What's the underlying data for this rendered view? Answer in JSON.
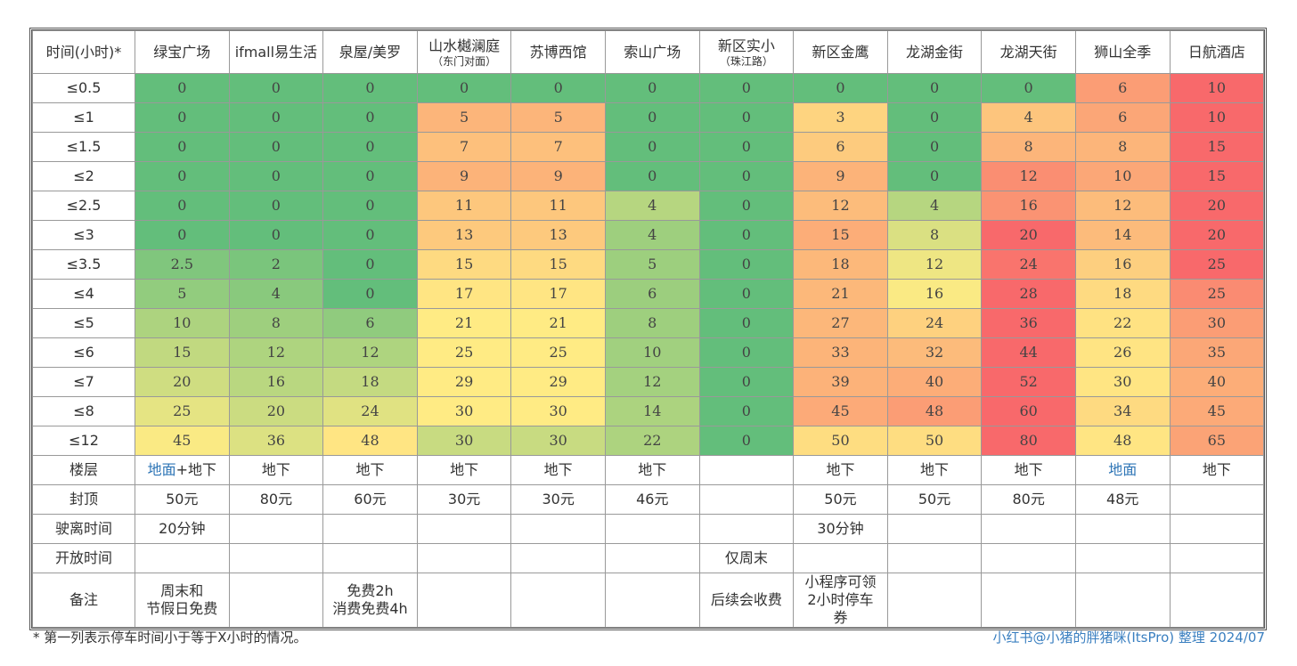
{
  "table": {
    "corner": "时间(小时)*",
    "columns": [
      {
        "name": "绿宝广场"
      },
      {
        "name": "ifmall易生活"
      },
      {
        "name": "泉屋/美罗"
      },
      {
        "name": "山水樾澜庭",
        "sub": "（东门对面）"
      },
      {
        "name": "苏博西馆"
      },
      {
        "name": "索山广场"
      },
      {
        "name": "新区实小",
        "sub": "（珠江路）"
      },
      {
        "name": "新区金鹰"
      },
      {
        "name": "龙湖金街"
      },
      {
        "name": "龙湖天街"
      },
      {
        "name": "狮山全季"
      },
      {
        "name": "日航酒店"
      }
    ],
    "heat_colors": [
      "#63be7b",
      "#ffeb84",
      "#f8696b"
    ],
    "rows": [
      {
        "label": "≤0.5",
        "values": [
          0,
          0,
          0,
          0,
          0,
          0,
          0,
          0,
          0,
          0,
          6,
          10
        ]
      },
      {
        "label": "≤1",
        "values": [
          0,
          0,
          0,
          5,
          5,
          0,
          0,
          3,
          0,
          4,
          6,
          10
        ]
      },
      {
        "label": "≤1.5",
        "values": [
          0,
          0,
          0,
          7,
          7,
          0,
          0,
          6,
          0,
          8,
          8,
          15
        ]
      },
      {
        "label": "≤2",
        "values": [
          0,
          0,
          0,
          9,
          9,
          0,
          0,
          9,
          0,
          12,
          10,
          15
        ]
      },
      {
        "label": "≤2.5",
        "values": [
          0,
          0,
          0,
          11,
          11,
          4,
          0,
          12,
          4,
          16,
          12,
          20
        ]
      },
      {
        "label": "≤3",
        "values": [
          0,
          0,
          0,
          13,
          13,
          4,
          0,
          15,
          8,
          20,
          14,
          20
        ]
      },
      {
        "label": "≤3.5",
        "values": [
          2.5,
          2,
          0,
          15,
          15,
          5,
          0,
          18,
          12,
          24,
          16,
          25
        ]
      },
      {
        "label": "≤4",
        "values": [
          5,
          4,
          0,
          17,
          17,
          6,
          0,
          21,
          16,
          28,
          18,
          25
        ]
      },
      {
        "label": "≤5",
        "values": [
          10,
          8,
          6,
          21,
          21,
          8,
          0,
          27,
          24,
          36,
          22,
          30
        ]
      },
      {
        "label": "≤6",
        "values": [
          15,
          12,
          12,
          25,
          25,
          10,
          0,
          33,
          32,
          44,
          26,
          35
        ]
      },
      {
        "label": "≤7",
        "values": [
          20,
          16,
          18,
          29,
          29,
          12,
          0,
          39,
          40,
          52,
          30,
          40
        ]
      },
      {
        "label": "≤8",
        "values": [
          25,
          20,
          24,
          30,
          30,
          14,
          0,
          45,
          48,
          60,
          34,
          45
        ]
      },
      {
        "label": "≤12",
        "values": [
          45,
          36,
          48,
          30,
          30,
          22,
          0,
          50,
          50,
          80,
          48,
          65
        ]
      }
    ],
    "info_rows": [
      {
        "label": "楼层",
        "cells": [
          {
            "parts": [
              {
                "text": "地面",
                "color": "#2e75b6"
              },
              {
                "text": "+地下"
              }
            ]
          },
          "地下",
          "地下",
          "地下",
          "地下",
          "地下",
          null,
          "地下",
          "地下",
          "地下",
          {
            "parts": [
              {
                "text": "地面",
                "color": "#2e75b6"
              }
            ]
          },
          "地下"
        ]
      },
      {
        "label": "封顶",
        "cells": [
          "50元",
          "80元",
          "60元",
          "30元",
          "30元",
          "46元",
          null,
          "50元",
          "50元",
          "80元",
          "48元",
          null
        ]
      },
      {
        "label": "驶离时间",
        "cells": [
          "20分钟",
          null,
          null,
          null,
          null,
          null,
          null,
          "30分钟",
          null,
          null,
          null,
          null
        ]
      },
      {
        "label": "开放时间",
        "cells": [
          null,
          null,
          null,
          null,
          null,
          null,
          "仅周末",
          null,
          null,
          null,
          null,
          null
        ]
      },
      {
        "label": "备注",
        "cells": [
          [
            "周末和",
            "节假日免费"
          ],
          null,
          [
            "免费2h",
            "消费免费4h"
          ],
          null,
          null,
          null,
          [
            "后续会收费"
          ],
          [
            "小程序可领",
            "2小时停车",
            "券"
          ],
          null,
          null,
          null,
          null
        ]
      }
    ]
  },
  "footnote": "* 第一列表示停车时间小于等于X小时的情况。",
  "credit": "小红书@小猪的胖猪咪(ItsPro) 整理 2024/07"
}
